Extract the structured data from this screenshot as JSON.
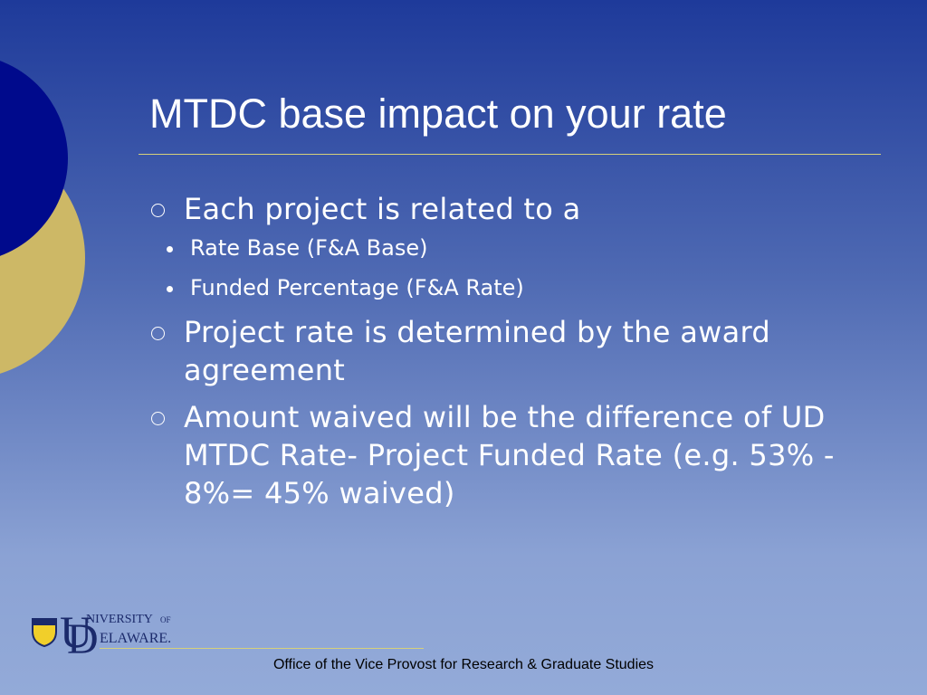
{
  "title": "MTDC base impact on your rate",
  "bullets": [
    {
      "text": "Each project is related to a",
      "sub": [
        "Rate Base (F&A Base)",
        "Funded Percentage (F&A Rate)"
      ]
    },
    {
      "text": "Project rate is determined by the award agreement"
    },
    {
      "text": "Amount waived will be the difference of UD MTDC Rate- Project Funded Rate (e.g. 53% - 8%= 45% waived)"
    }
  ],
  "logo": {
    "line1": "NIVERSITY",
    "of": "OF",
    "line2": "ELAWARE."
  },
  "footer": "Office of the Vice Provost for Research & Graduate Studies"
}
